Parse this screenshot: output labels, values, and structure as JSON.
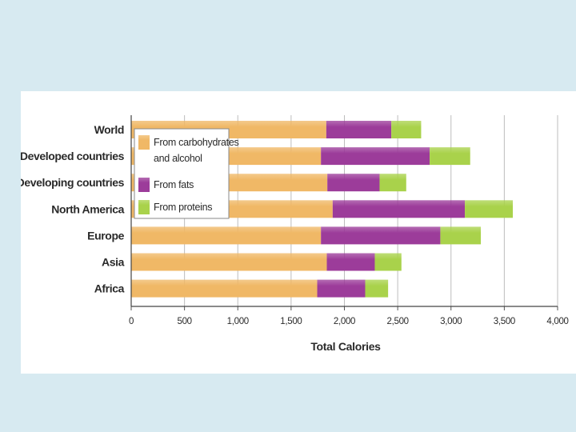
{
  "chart_data": {
    "type": "bar",
    "orientation": "horizontal",
    "stacked": true,
    "categories": [
      "World",
      "Developed countries",
      "Developing countries",
      "North America",
      "Europe",
      "Asia",
      "Africa"
    ],
    "series": [
      {
        "name": "From carbohydrates and alcohol",
        "legend_lines": [
          "From carbohydrates",
          "and alcohol"
        ],
        "color": "#f0b866",
        "values": [
          1830,
          1780,
          1840,
          1890,
          1780,
          1835,
          1745
        ]
      },
      {
        "name": "From fats",
        "legend_lines": [
          "From fats"
        ],
        "color": "#9c3c9a",
        "values": [
          610,
          1020,
          490,
          1240,
          1120,
          450,
          450
        ]
      },
      {
        "name": "From proteins",
        "legend_lines": [
          "From proteins"
        ],
        "color": "#a9d24b",
        "values": [
          280,
          380,
          250,
          450,
          380,
          250,
          215
        ]
      }
    ],
    "xlabel": "Total Calories",
    "ylabel": "",
    "xlim": [
      0,
      4000
    ],
    "xticks": [
      0,
      500,
      1000,
      1500,
      2000,
      2500,
      3000,
      3500,
      4000
    ],
    "xtick_labels": [
      "0",
      "500",
      "1,000",
      "1,500",
      "2,000",
      "2,500",
      "3,000",
      "3,500",
      "4,000"
    ],
    "grid": true,
    "legend": "top-left"
  }
}
